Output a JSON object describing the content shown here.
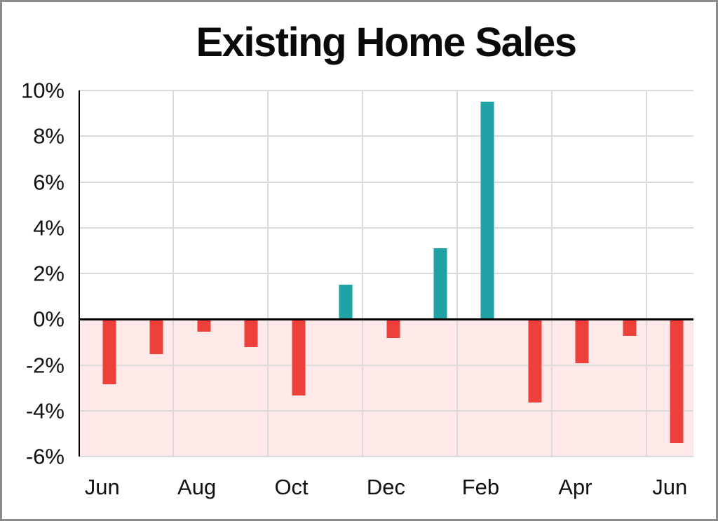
{
  "window": {
    "border_color": "#8C8C8C",
    "background": "#FFFFFF"
  },
  "chart_data": {
    "type": "bar",
    "title": "Existing Home Sales",
    "xlabel": "",
    "ylabel": "",
    "unit": "%",
    "values": [
      -2.8,
      -1.5,
      -0.5,
      -1.2,
      -3.3,
      1.5,
      -0.8,
      3.1,
      9.5,
      -3.6,
      -1.9,
      -0.7,
      -5.4
    ],
    "x_tick_labels": [
      "Jun",
      "Aug",
      "Oct",
      "Dec",
      "Feb",
      "Apr",
      "Jun"
    ],
    "x_tick_bar_indices": [
      0,
      2,
      4,
      6,
      8,
      10,
      12
    ],
    "ylim": [
      -6,
      10
    ],
    "y_tick_step": 2,
    "y_tick_labels": [
      "10%",
      "8%",
      "6%",
      "4%",
      "2%",
      "0%",
      "-2%",
      "-4%",
      "-6%"
    ],
    "grid": true,
    "legend_position": "none",
    "colors": {
      "positive_bar": "#1FA3A6",
      "negative_bar": "#EE403A",
      "negative_region_shade": "#FCE9E8",
      "gridline": "#DADADA",
      "axis_line": "#000000",
      "text": "#111111",
      "title_text": "#0A0A0A"
    }
  }
}
